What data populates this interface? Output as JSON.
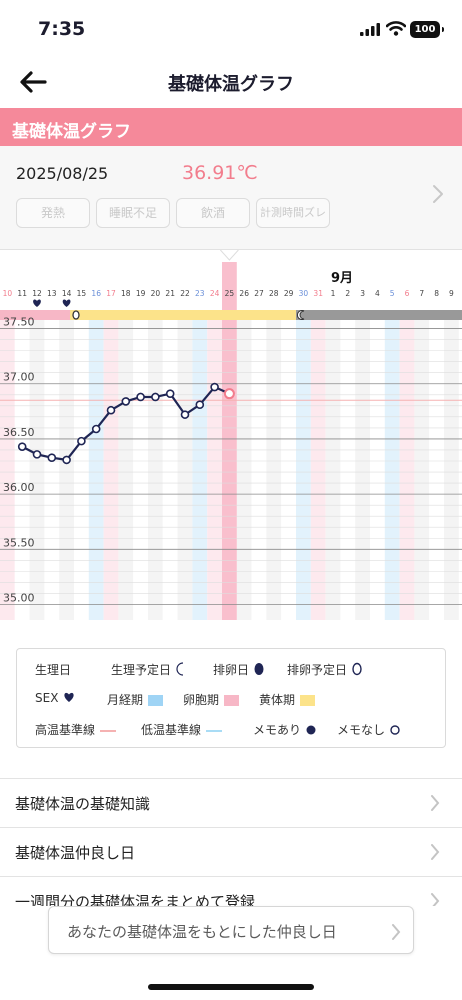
{
  "status_bar": {
    "time": "7:35",
    "battery": "100"
  },
  "nav": {
    "title": "基礎体温グラフ"
  },
  "section_header": {
    "title": "基礎体温グラフ"
  },
  "summary": {
    "date": "2025/08/25",
    "temperature": "36.91℃",
    "tags": [
      "発熱",
      "睡眠不足",
      "飲酒",
      "計測時間ズレ"
    ]
  },
  "chart_data": {
    "type": "line",
    "month_label": "9月",
    "day_labels": [
      "10",
      "11",
      "12",
      "13",
      "14",
      "15",
      "16",
      "17",
      "18",
      "19",
      "20",
      "21",
      "22",
      "23",
      "24",
      "25",
      "26",
      "27",
      "28",
      "29",
      "30",
      "31",
      "1",
      "2",
      "3",
      "4",
      "5",
      "6",
      "7",
      "8",
      "9"
    ],
    "day_label_colors": [
      "#f27d8d",
      "#444444",
      "#444444",
      "#444444",
      "#444444",
      "#444444",
      "#6a8fd8",
      "#f27d8d",
      "#444444",
      "#444444",
      "#444444",
      "#444444",
      "#444444",
      "#6a8fd8",
      "#f27d8d",
      "#444444",
      "#444444",
      "#444444",
      "#444444",
      "#444444",
      "#6a8fd8",
      "#f27d8d",
      "#444444",
      "#444444",
      "#444444",
      "#444444",
      "#6a8fd8",
      "#f27d8d",
      "#444444",
      "#444444",
      "#444444"
    ],
    "selected_day": "25",
    "y_ticks": [
      "37.50",
      "37.00",
      "36.50",
      "36.00",
      "35.50",
      "35.00"
    ],
    "ylim": [
      34.95,
      37.65
    ],
    "series": [
      {
        "values": [
          36.43,
          36.36,
          36.33,
          36.31,
          36.48,
          36.59,
          36.76,
          36.84,
          36.88,
          36.88,
          36.91,
          36.72,
          36.81,
          36.97,
          36.91
        ],
        "start_index": 1
      }
    ],
    "sex_days": [
      "12",
      "14"
    ],
    "ovulation_expected_day": "15",
    "period_expected_day": "30",
    "phase_colors": {
      "menstrual": "#9fd4f5",
      "follicular": "#f7b7c6",
      "luteal": "#fce38a",
      "predicted": "#999999"
    },
    "high_baseline_color": "#f5b2b2",
    "low_baseline_color": "#a9dcf5"
  },
  "legend": {
    "row1": [
      {
        "label": "生理日",
        "icon": "filled-moon-icon"
      },
      {
        "label": "生理予定日",
        "icon": "outline-moon-icon"
      },
      {
        "label": "排卵日",
        "icon": "filled-egg-icon"
      },
      {
        "label": "排卵予定日",
        "icon": "outline-egg-icon"
      }
    ],
    "row2": [
      {
        "label": "SEX",
        "icon": "heart-icon"
      },
      {
        "label": "月経期",
        "color": "#9fd4f5"
      },
      {
        "label": "卵胞期",
        "color": "#f7b7c6"
      },
      {
        "label": "黄体期",
        "color": "#fce38a"
      }
    ],
    "row3": [
      {
        "label": "高温基準線",
        "color": "#f5b2b2"
      },
      {
        "label": "低温基準線",
        "color": "#a9dcf5"
      },
      {
        "label": "メモあり",
        "icon": "filled-dot-icon"
      },
      {
        "label": "メモなし",
        "icon": "outline-dot-icon"
      }
    ]
  },
  "list": [
    {
      "label": "基礎体温の基礎知識"
    },
    {
      "label": "基礎体温仲良し日"
    },
    {
      "label": "一週間分の基礎体温をまとめて登録"
    }
  ],
  "banner": {
    "label": "あなたの基礎体温をもとにした仲良し日"
  }
}
